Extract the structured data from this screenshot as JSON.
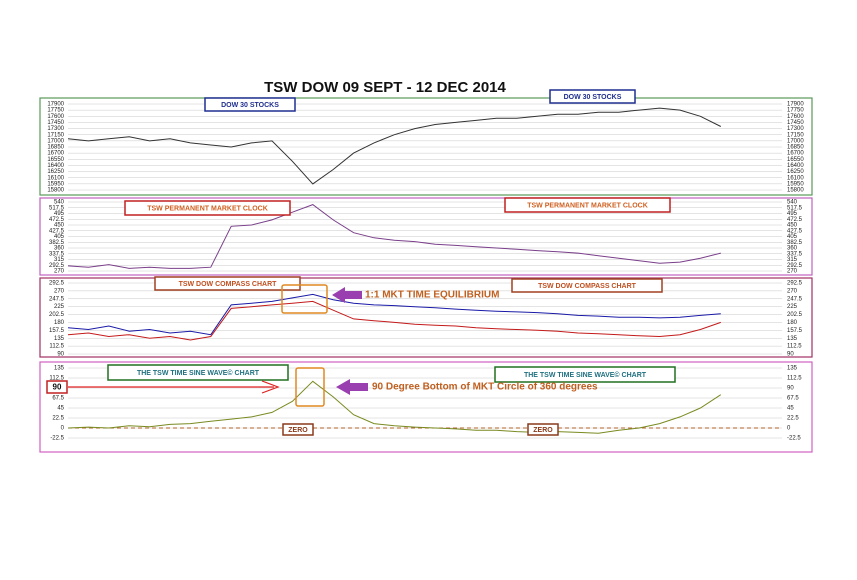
{
  "title": "TSW DOW 09 SEPT - 12 DEC 2014",
  "chart_data": [
    {
      "type": "line",
      "annotations": [
        "DOW 30 STOCKS",
        "DOW 30 STOCKS"
      ],
      "ylim": [
        15800,
        17900
      ],
      "yticks": [
        17900,
        17750,
        17600,
        17450,
        17300,
        17150,
        17000,
        16850,
        16700,
        16550,
        16400,
        16250,
        16100,
        15950,
        15800
      ],
      "grid": true,
      "series": [
        {
          "color": "#333333",
          "values": [
            17050,
            17000,
            17050,
            17100,
            17000,
            17050,
            16950,
            16900,
            16850,
            16950,
            17000,
            16500,
            15950,
            16300,
            16700,
            16950,
            17150,
            17300,
            17400,
            17450,
            17500,
            17550,
            17550,
            17600,
            17650,
            17650,
            17700,
            17700,
            17750,
            17800,
            17750,
            17600,
            17350,
            null,
            null,
            null
          ]
        }
      ]
    },
    {
      "type": "line",
      "annotations": [
        "TSW PERMANENT MARKET CLOCK",
        "TSW PERMANENT MARKET CLOCK"
      ],
      "ylim": [
        270,
        540
      ],
      "yticks": [
        540,
        517.5,
        495,
        472.5,
        450,
        427.5,
        405,
        382.5,
        360,
        337.5,
        315,
        292.5,
        270
      ],
      "grid": true,
      "series": [
        {
          "color": "#7a3f8a",
          "values": [
            290,
            285,
            295,
            280,
            285,
            280,
            280,
            285,
            445,
            450,
            470,
            500,
            530,
            470,
            420,
            400,
            390,
            385,
            375,
            370,
            365,
            360,
            355,
            350,
            345,
            340,
            330,
            320,
            310,
            300,
            305,
            320,
            340,
            null,
            null,
            null
          ]
        }
      ]
    },
    {
      "type": "line",
      "annotations": [
        "TSW DOW COMPASS CHART",
        "TSW DOW COMPASS CHART",
        "1:1 MKT TIME EQUILIBRIUM"
      ],
      "ylim": [
        90,
        292.5
      ],
      "yticks": [
        292.5,
        270,
        247.5,
        225,
        202.5,
        180,
        157.5,
        135,
        112.5,
        90
      ],
      "grid": true,
      "series": [
        {
          "color": "#1a1aa8",
          "values": [
            165,
            160,
            170,
            155,
            160,
            150,
            155,
            145,
            230,
            235,
            240,
            250,
            260,
            245,
            235,
            230,
            228,
            225,
            222,
            218,
            215,
            212,
            210,
            208,
            205,
            200,
            198,
            195,
            195,
            193,
            195,
            200,
            205,
            null,
            null,
            null
          ]
        },
        {
          "color": "#c41a1a",
          "values": [
            145,
            150,
            140,
            145,
            135,
            140,
            130,
            140,
            220,
            225,
            230,
            235,
            240,
            215,
            190,
            185,
            180,
            175,
            172,
            170,
            165,
            162,
            160,
            158,
            155,
            150,
            148,
            145,
            142,
            140,
            145,
            160,
            180,
            null,
            null,
            null
          ]
        }
      ]
    },
    {
      "type": "line",
      "annotations": [
        "THE TSW TIME SINE WAVE© CHART",
        "THE TSW TIME SINE WAVE© CHART",
        "90",
        "90 Degree Bottom of MKT Circle of 360 degrees",
        "ZERO",
        "ZERO"
      ],
      "ylim": [
        -22.5,
        135
      ],
      "yticks": [
        135,
        112.5,
        90,
        67.5,
        45,
        22.5,
        0,
        -22.5
      ],
      "grid": true,
      "series": [
        {
          "color": "#7a8a20",
          "values": [
            0,
            2,
            0,
            5,
            3,
            8,
            10,
            15,
            20,
            25,
            35,
            60,
            105,
            70,
            30,
            10,
            5,
            2,
            0,
            -2,
            -5,
            -5,
            -8,
            -10,
            -8,
            -10,
            -12,
            -5,
            0,
            10,
            25,
            45,
            75,
            null,
            null,
            null
          ]
        }
      ]
    }
  ]
}
